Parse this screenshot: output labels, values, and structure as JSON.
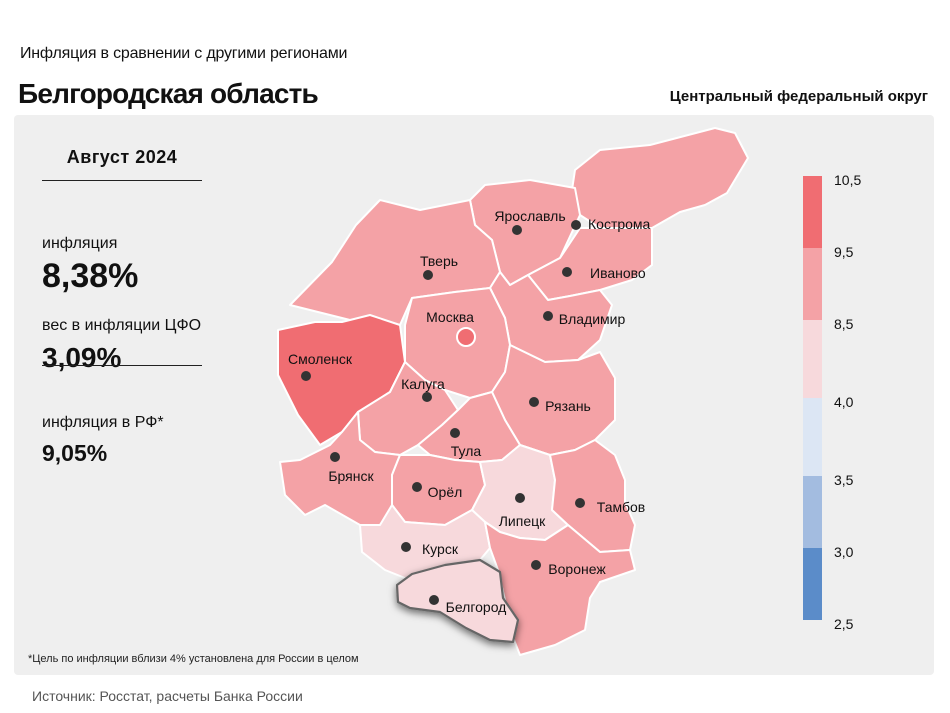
{
  "header": {
    "subtitle": "Инфляция  в сравнении  с другими  регионами",
    "title": "Белгородская область",
    "district": "Центральный федеральный округ"
  },
  "stats": {
    "period": "Август 2024",
    "inflation_label": "инфляция",
    "inflation_value": "8,38%",
    "weight_label": "вес в инфляции  ЦФО",
    "weight_value": "3,09%",
    "rf_label": "инфляция  в РФ*",
    "rf_value": "9,05%"
  },
  "footnote": "*Цель по инфляции вблизи 4% установлена для России в целом",
  "source": "Источник: Росстат, расчеты Банка России",
  "highlighted_region": "Белгород",
  "legend": {
    "ticks": [
      "10,5",
      "9,5",
      "8,5",
      "4,0",
      "3,5",
      "3,0",
      "2,5"
    ],
    "bins": [
      {
        "from": "9,5",
        "to": "10,5",
        "color": "#f06d72"
      },
      {
        "from": "8,5",
        "to": "9,5",
        "color": "#f4a2a6"
      },
      {
        "from": "4,0",
        "to": "8,5",
        "color": "#f7d9dc"
      },
      {
        "from": "3,5",
        "to": "4,0",
        "color": "#dce6f4"
      },
      {
        "from": "3,0",
        "to": "3,5",
        "color": "#a3bce0"
      },
      {
        "from": "2,5",
        "to": "3,0",
        "color": "#5b8cc9"
      }
    ]
  },
  "colors": {
    "very_high": "#f06d72",
    "high": "#f4a2a6",
    "moderate": "#f7d9dc",
    "border": "#ffffff",
    "dot": "#333333"
  },
  "regions": [
    {
      "name": "Кострома",
      "bin": "high"
    },
    {
      "name": "Ярославль",
      "bin": "high"
    },
    {
      "name": "Иваново",
      "bin": "high"
    },
    {
      "name": "Тверь",
      "bin": "high"
    },
    {
      "name": "Владимир",
      "bin": "high"
    },
    {
      "name": "Москва",
      "bin": "high"
    },
    {
      "name": "Смоленск",
      "bin": "very_high"
    },
    {
      "name": "Калуга",
      "bin": "high"
    },
    {
      "name": "Рязань",
      "bin": "high"
    },
    {
      "name": "Тула",
      "bin": "high"
    },
    {
      "name": "Брянск",
      "bin": "high"
    },
    {
      "name": "Орёл",
      "bin": "high"
    },
    {
      "name": "Липецк",
      "bin": "moderate"
    },
    {
      "name": "Тамбов",
      "bin": "high"
    },
    {
      "name": "Курск",
      "bin": "moderate"
    },
    {
      "name": "Воронеж",
      "bin": "high"
    },
    {
      "name": "Белгород",
      "bin": "moderate"
    }
  ]
}
